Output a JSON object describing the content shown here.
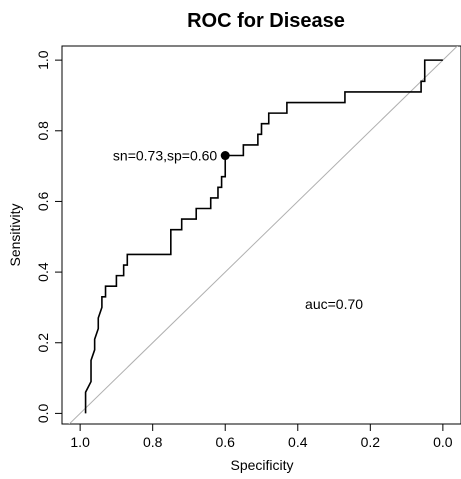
{
  "chart_data": {
    "type": "line",
    "title": "ROC for Disease",
    "xlabel": "Specificity",
    "ylabel": "Sensitivity",
    "x_reversed": true,
    "xlim": [
      1.05,
      -0.05
    ],
    "ylim": [
      -0.03,
      1.04
    ],
    "x_ticks": [
      1.0,
      0.8,
      0.6,
      0.4,
      0.2,
      0.0
    ],
    "x_tick_labels": [
      "1.0",
      "0.8",
      "0.6",
      "0.4",
      "0.2",
      "0.0"
    ],
    "y_ticks": [
      0.0,
      0.2,
      0.4,
      0.6,
      0.8,
      1.0
    ],
    "y_tick_labels": [
      "0.0",
      "0.2",
      "0.4",
      "0.6",
      "0.8",
      "1.0"
    ],
    "grid": false,
    "diagonal_reference": true,
    "colors": {
      "curve": "#000000",
      "diagonal": "#b0b0b0",
      "point": "#000000"
    },
    "series": [
      {
        "specificity": [
          0.985,
          0.985,
          0.97,
          0.97,
          0.96,
          0.96,
          0.95,
          0.95,
          0.94,
          0.94,
          0.93,
          0.93,
          0.92,
          0.92,
          0.9,
          0.9,
          0.88,
          0.88,
          0.87,
          0.87,
          0.75,
          0.75,
          0.72,
          0.72,
          0.68,
          0.68,
          0.64,
          0.64,
          0.62,
          0.62,
          0.61,
          0.61,
          0.6,
          0.6,
          0.55,
          0.55,
          0.51,
          0.51,
          0.5,
          0.5,
          0.48,
          0.48,
          0.43,
          0.43,
          0.35,
          0.35,
          0.27,
          0.27,
          0.06,
          0.06,
          0.05,
          0.05,
          0.0
        ],
        "sensitivity": [
          0.0,
          0.06,
          0.09,
          0.15,
          0.18,
          0.21,
          0.24,
          0.27,
          0.3,
          0.33,
          0.33,
          0.36,
          0.36,
          0.36,
          0.36,
          0.39,
          0.39,
          0.42,
          0.42,
          0.45,
          0.45,
          0.52,
          0.52,
          0.55,
          0.55,
          0.58,
          0.58,
          0.61,
          0.61,
          0.64,
          0.64,
          0.67,
          0.67,
          0.73,
          0.73,
          0.76,
          0.76,
          0.79,
          0.79,
          0.82,
          0.82,
          0.85,
          0.85,
          0.88,
          0.88,
          0.88,
          0.88,
          0.91,
          0.91,
          0.94,
          0.94,
          1.0,
          1.0
        ]
      }
    ],
    "highlight_point": {
      "specificity": 0.6,
      "sensitivity": 0.73,
      "label": "sn=0.73,sp=0.60"
    },
    "annotations": [
      {
        "text": "auc=0.70",
        "specificity": 0.3,
        "sensitivity": 0.31
      }
    ]
  }
}
